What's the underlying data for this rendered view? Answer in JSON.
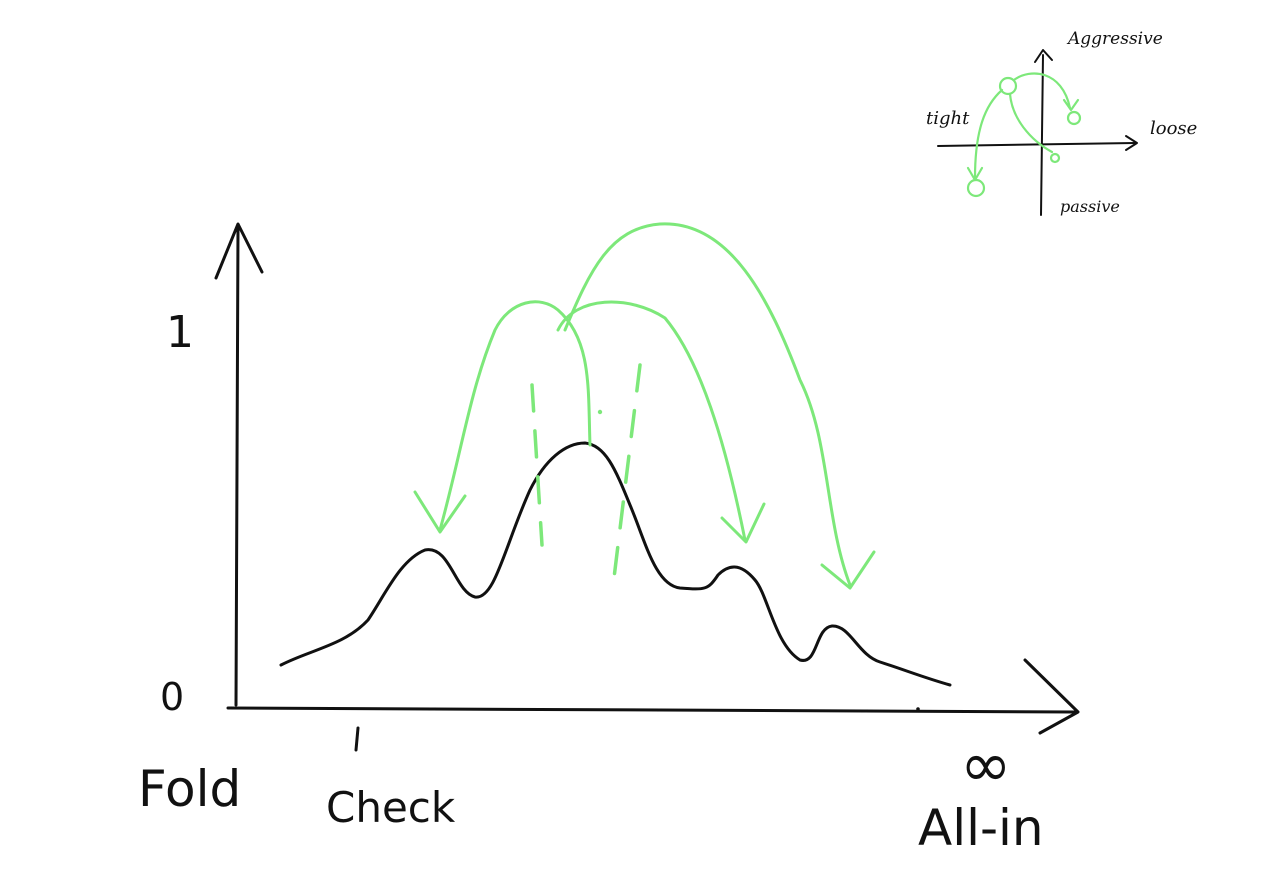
{
  "labels": {
    "y_one": "1",
    "y_zero": "0",
    "fold": "Fold",
    "check": "Check",
    "infinity": "∞",
    "all_in": "All-in"
  },
  "inset": {
    "aggressive": "Aggressive",
    "tight": "tight",
    "loose": "loose",
    "passive": "passive"
  },
  "colors": {
    "ink": "#111111",
    "arrow_green": "#7de87a"
  }
}
